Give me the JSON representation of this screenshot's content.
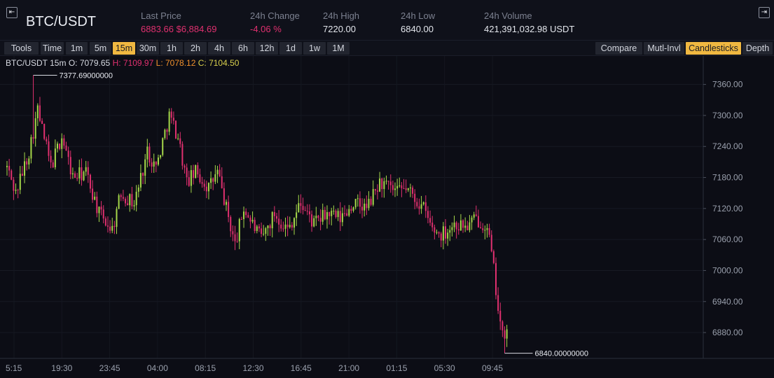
{
  "header": {
    "pair": "BTC/USDT",
    "collapse_icon": "collapse-left-icon",
    "expand_icon": "expand-right-icon",
    "stats": {
      "last_price": {
        "label": "Last Price",
        "value": "6883.66 $6,884.69",
        "color": "#e0306f"
      },
      "change_24h": {
        "label": "24h Change",
        "value": "-4.06 %",
        "color": "#e0306f"
      },
      "high_24h": {
        "label": "24h High",
        "value": "7220.00"
      },
      "low_24h": {
        "label": "24h Low",
        "value": "6840.00"
      },
      "volume_24h": {
        "label": "24h Volume",
        "value": "421,391,032.98 USDT"
      }
    }
  },
  "toolbar": {
    "tools": "Tools",
    "time": "Time",
    "intervals": [
      "1m",
      "5m",
      "15m",
      "30m",
      "1h",
      "2h",
      "4h",
      "6h",
      "12h",
      "1d",
      "1w",
      "1M"
    ],
    "active_interval": "15m",
    "right_buttons": [
      "Compare",
      "Mutl-Invl",
      "Candlesticks",
      "Depth"
    ],
    "active_right": "Candlesticks"
  },
  "legend": {
    "symbol": "BTC/USDT 15m",
    "open_label": "O:",
    "open": "7079.65",
    "high_label": "H:",
    "high": "7109.97",
    "low_label": "L:",
    "low": "7078.12",
    "close_label": "C:",
    "close": "7104.50"
  },
  "colors": {
    "up": "#a6d84a",
    "down": "#e0306f",
    "accent": "#f0b841",
    "background": "#0c0d15"
  },
  "chart_data": {
    "type": "candlestick",
    "y_ticks": [
      "7360.00",
      "7300.00",
      "7240.00",
      "7180.00",
      "7120.00",
      "7060.00",
      "7000.00",
      "6940.00",
      "6880.00"
    ],
    "x_ticks": [
      "5:15",
      "19:30",
      "23:45",
      "04:00",
      "08:15",
      "12:30",
      "16:45",
      "21:00",
      "01:15",
      "05:30",
      "09:45"
    ],
    "ylim": [
      6830,
      7415
    ],
    "max_annotation": "7377.69000000",
    "min_annotation": "6840.00000000",
    "max_value": 7377.69,
    "min_value": 6840,
    "anchors": [
      [
        0,
        7200
      ],
      [
        4,
        7150
      ],
      [
        10,
        7230
      ],
      [
        14,
        7310
      ],
      [
        20,
        7200
      ],
      [
        25,
        7260
      ],
      [
        30,
        7180
      ],
      [
        36,
        7190
      ],
      [
        42,
        7110
      ],
      [
        48,
        7080
      ],
      [
        52,
        7150
      ],
      [
        58,
        7130
      ],
      [
        64,
        7230
      ],
      [
        68,
        7200
      ],
      [
        74,
        7300
      ],
      [
        78,
        7260
      ],
      [
        82,
        7170
      ],
      [
        86,
        7190
      ],
      [
        92,
        7160
      ],
      [
        96,
        7190
      ],
      [
        100,
        7120
      ],
      [
        104,
        7050
      ],
      [
        108,
        7120
      ],
      [
        112,
        7090
      ],
      [
        116,
        7060
      ],
      [
        122,
        7110
      ],
      [
        128,
        7080
      ],
      [
        134,
        7130
      ],
      [
        140,
        7090
      ],
      [
        146,
        7110
      ],
      [
        152,
        7100
      ],
      [
        158,
        7130
      ],
      [
        164,
        7120
      ],
      [
        170,
        7170
      ],
      [
        174,
        7160
      ],
      [
        178,
        7150
      ],
      [
        182,
        7160
      ],
      [
        186,
        7140
      ],
      [
        190,
        7120
      ],
      [
        194,
        7080
      ],
      [
        198,
        7070
      ],
      [
        204,
        7090
      ],
      [
        210,
        7085
      ],
      [
        214,
        7100
      ],
      [
        218,
        7090
      ],
      [
        220,
        7060
      ],
      [
        222,
        7000
      ],
      [
        224,
        6930
      ],
      [
        226,
        6870
      ],
      [
        228,
        6880
      ]
    ]
  }
}
